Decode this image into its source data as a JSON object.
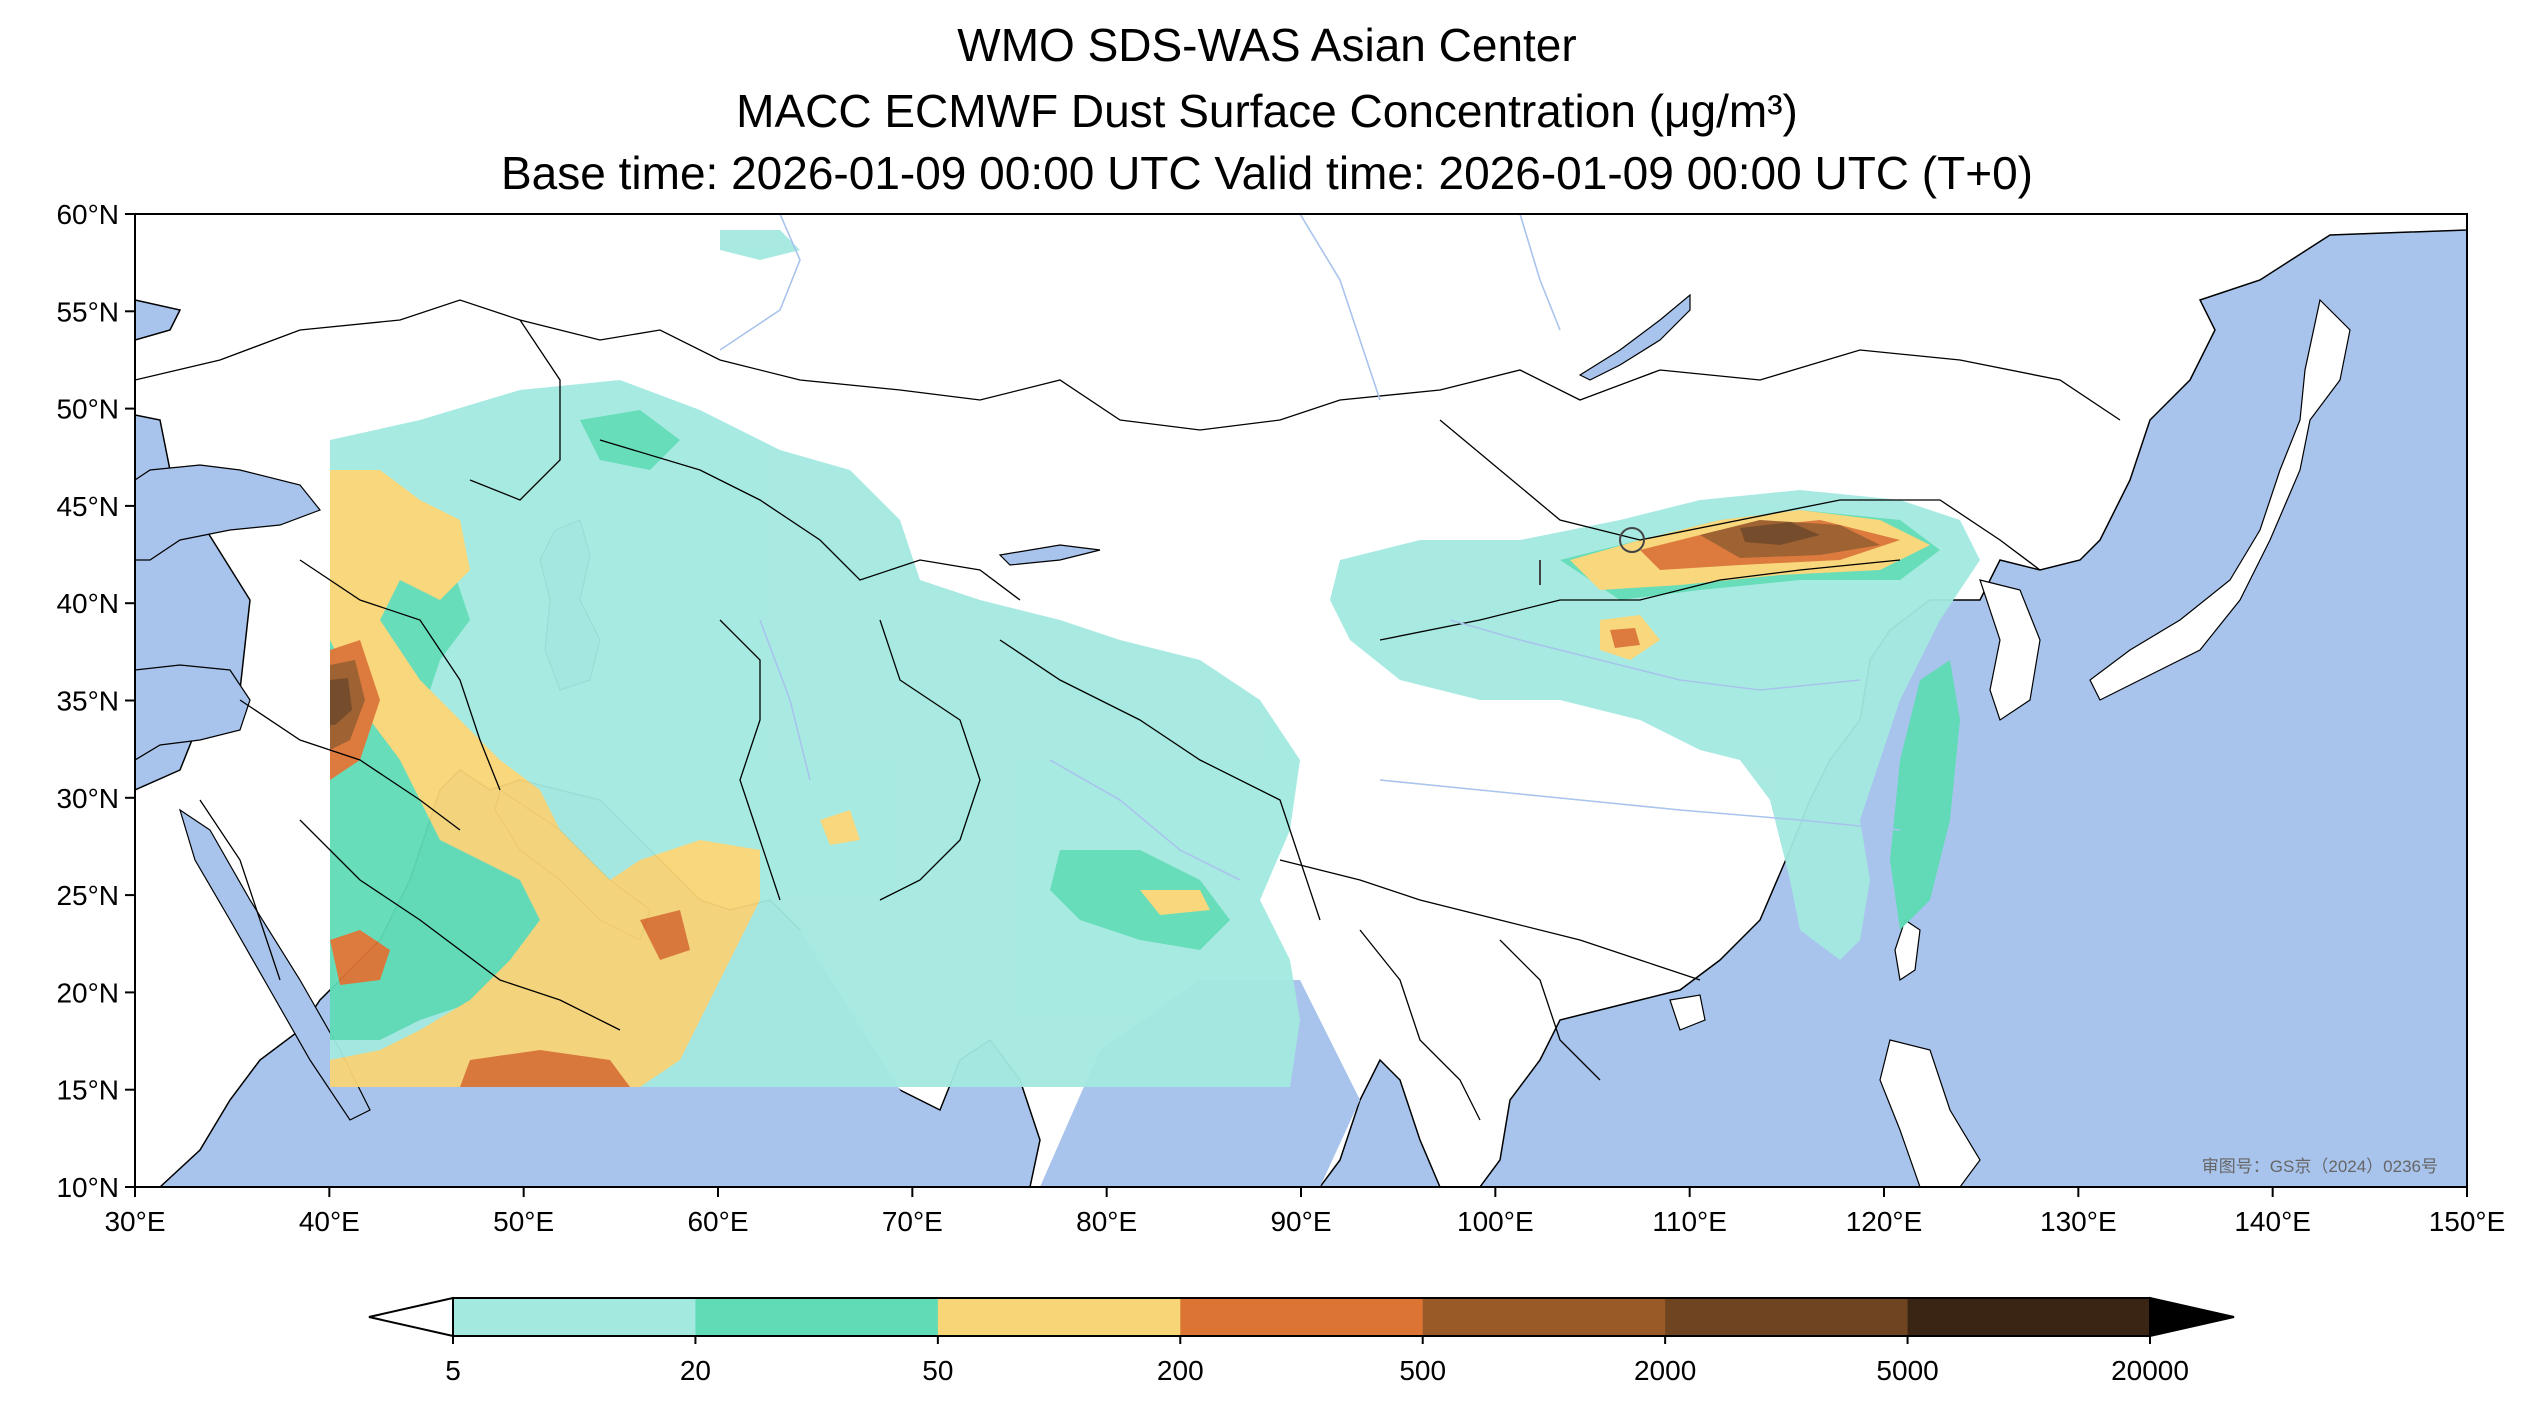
{
  "title": {
    "line1": "WMO SDS-WAS Asian Center",
    "line2": "MACC ECMWF Dust Surface Concentration (μg/m³)",
    "line3": "Base time: 2026-01-09 00:00 UTC Valid time: 2026-01-09 00:00 UTC (T+0)"
  },
  "map": {
    "lon_range": [
      30,
      150
    ],
    "lat_range": [
      10,
      60
    ],
    "x_ticks": [
      "30°E",
      "40°E",
      "50°E",
      "60°E",
      "70°E",
      "80°E",
      "90°E",
      "100°E",
      "110°E",
      "120°E",
      "130°E",
      "140°E",
      "150°E"
    ],
    "y_ticks": [
      "10°N",
      "15°N",
      "20°N",
      "25°N",
      "30°N",
      "35°N",
      "40°N",
      "45°N",
      "50°N",
      "55°N",
      "60°N"
    ],
    "approval_number": "审图号：GS京（2024）0236号",
    "colors": {
      "ocean": "#a9c4ec",
      "land": "#ffffff",
      "border": "#000000",
      "river": "#a9c4ec"
    }
  },
  "colorbar": {
    "levels": [
      "5",
      "20",
      "50",
      "200",
      "500",
      "2000",
      "5000",
      "20000"
    ],
    "colors": [
      "#a3e9e0",
      "#5fdcb6",
      "#f8d577",
      "#dc7434",
      "#9a5a28",
      "#6f4421",
      "#3a2514"
    ],
    "extend": "both"
  }
}
